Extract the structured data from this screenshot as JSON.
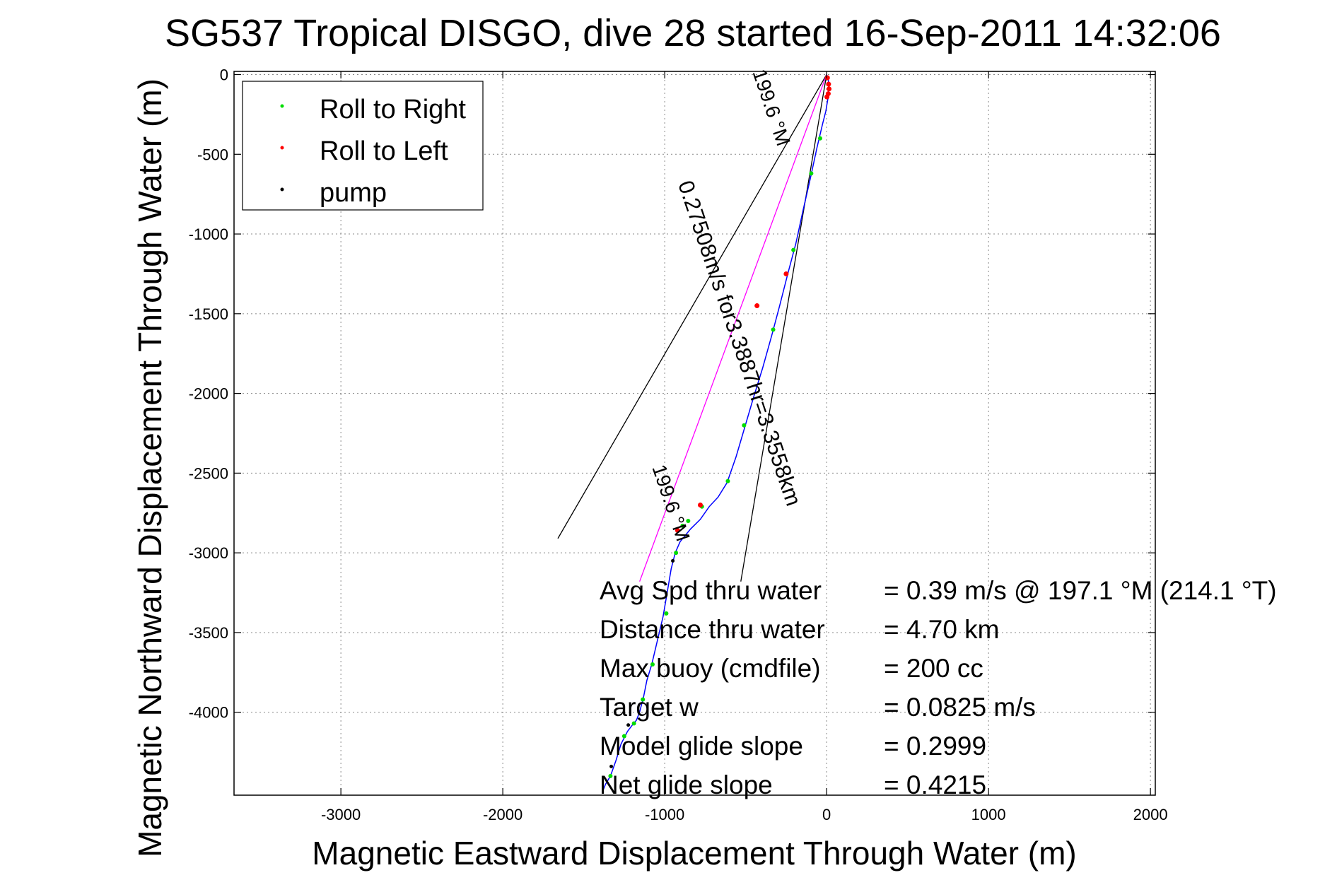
{
  "chart_data": {
    "type": "line",
    "title": "SG537 Tropical DISGO, dive 28 started 16-Sep-2011 14:32:06",
    "xlabel": "Magnetic Eastward Displacement Through Water (m)",
    "ylabel": "Magnetic Northward Displacement Through Water (m)",
    "xlim": [
      -3660,
      2030
    ],
    "ylim": [
      -4520,
      20
    ],
    "xticks": [
      -3000,
      -2000,
      -1000,
      0,
      1000,
      2000
    ],
    "yticks": [
      0,
      -500,
      -1000,
      -1500,
      -2000,
      -2500,
      -3000,
      -3500,
      -4000
    ],
    "grid": true,
    "legend_position": "top-left",
    "legend": [
      {
        "label": "Roll to Right",
        "color": "#00dd00"
      },
      {
        "label": "Roll to Left",
        "color": "#ff0000"
      },
      {
        "label": "pump",
        "color": "#000000"
      }
    ],
    "track": {
      "color": "#0000ff",
      "x": [
        0,
        10,
        15,
        8,
        -5,
        -25,
        -60,
        -100,
        -145,
        -190,
        -240,
        -290,
        -340,
        -395,
        -450,
        -505,
        -560,
        -615,
        -670,
        -725,
        -780,
        -840,
        -905,
        -935,
        -960,
        -985,
        -1010,
        -1045,
        -1080,
        -1110,
        -1130,
        -1155,
        -1175,
        -1200,
        -1230,
        -1270,
        -1300,
        -1335,
        -1365,
        -1385
      ],
      "y": [
        0,
        -30,
        -80,
        -150,
        -230,
        -310,
        -460,
        -650,
        -850,
        -1060,
        -1250,
        -1450,
        -1640,
        -1840,
        -2020,
        -2210,
        -2400,
        -2560,
        -2650,
        -2710,
        -2790,
        -2850,
        -2930,
        -3000,
        -3100,
        -3250,
        -3400,
        -3550,
        -3700,
        -3800,
        -3900,
        -4000,
        -4050,
        -4080,
        -4120,
        -4200,
        -4300,
        -4400,
        -4450,
        -4500
      ]
    },
    "roll_right": {
      "color": "#00dd00",
      "x": [
        -40,
        -95,
        -205,
        -330,
        -510,
        -610,
        -770,
        -855,
        -890,
        -930,
        -990,
        -1075,
        -1135,
        -1190,
        -1250,
        -1335
      ],
      "y": [
        -400,
        -620,
        -1100,
        -1600,
        -2200,
        -2550,
        -2710,
        -2800,
        -2830,
        -3000,
        -3380,
        -3700,
        -3920,
        -4070,
        -4150,
        -4400
      ]
    },
    "roll_left": {
      "color": "#ff0000",
      "x": [
        5,
        12,
        15,
        10,
        2,
        -250,
        -430,
        -780,
        -920
      ],
      "y": [
        -20,
        -60,
        -90,
        -120,
        -140,
        -1250,
        -1450,
        -2700,
        -2860
      ]
    },
    "pump": {
      "color": "#000000",
      "x": [
        -950,
        -1225,
        -1330
      ],
      "y": [
        -3050,
        -4080,
        -4340
      ]
    },
    "current_arrow": {
      "color": "#ff00ff",
      "x": [
        0,
        -1155
      ],
      "y": [
        0,
        -3180
      ]
    },
    "wedge_lines": [
      {
        "x": [
          0,
          -1660
        ],
        "y": [
          0,
          -2910
        ]
      },
      {
        "x": [
          0,
          -530
        ],
        "y": [
          0,
          -3180
        ]
      }
    ],
    "annotations": [
      {
        "text": "199.6 °M",
        "x": -380,
        "y": -220,
        "angle": 71.3,
        "font": 28
      },
      {
        "text": "0.27508m/s for3.3887hr=3.3558km",
        "x": -580,
        "y": -1700,
        "angle": 71.3,
        "font": 31
      },
      {
        "text": "199.6 °M",
        "x": -1000,
        "y": -2700,
        "angle": 71.3,
        "font": 28
      }
    ],
    "stats": [
      {
        "label": "Avg Spd thru water",
        "value": "=  0.39 m/s @ 197.1 °M (214.1 °T)"
      },
      {
        "label": "Distance thru water",
        "value": "=  4.70 km"
      },
      {
        "label": "Max buoy (cmdfile)",
        "value": "= 200 cc"
      },
      {
        "label": "Target w",
        "value": "= 0.0825 m/s"
      },
      {
        "label": "Model glide slope",
        "value": "= 0.2999"
      },
      {
        "label": "Net glide slope",
        "value": "= 0.4215"
      }
    ]
  }
}
